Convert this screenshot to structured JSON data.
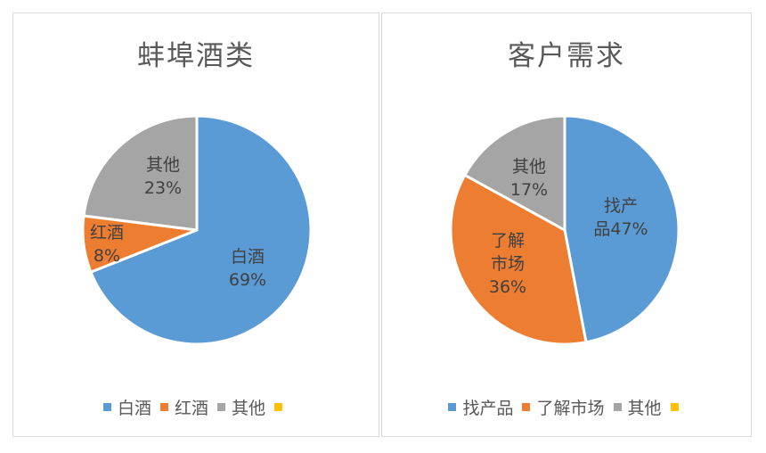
{
  "chart_data": [
    {
      "type": "pie",
      "title": "蚌埠酒类",
      "categories": [
        "白酒",
        "红酒",
        "其他",
        ""
      ],
      "values": [
        69,
        8,
        23,
        0
      ],
      "labels": [
        [
          "白酒",
          "69%"
        ],
        [
          "红酒",
          "8%"
        ],
        [
          "其他",
          "23%"
        ],
        []
      ],
      "colors": [
        "#5b9bd5",
        "#ed7d31",
        "#a5a5a5",
        "#ffc000"
      ],
      "legend": "bottom"
    },
    {
      "type": "pie",
      "title": "客户需求",
      "categories": [
        "找产品",
        "了解市场",
        "其他",
        ""
      ],
      "values": [
        47,
        36,
        17,
        0
      ],
      "labels": [
        [
          "找产",
          "品47%"
        ],
        [
          "了解",
          "市场",
          "36%"
        ],
        [
          "其他",
          "17%"
        ],
        []
      ],
      "colors": [
        "#5b9bd5",
        "#ed7d31",
        "#a5a5a5",
        "#ffc000"
      ],
      "legend": "bottom"
    }
  ]
}
